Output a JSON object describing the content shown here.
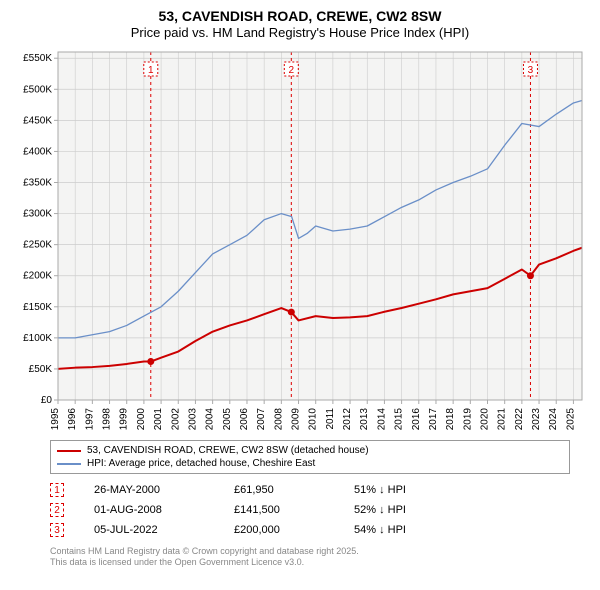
{
  "title": "53, CAVENDISH ROAD, CREWE, CW2 8SW",
  "subtitle": "Price paid vs. HM Land Registry's House Price Index (HPI)",
  "chart": {
    "type": "line",
    "background_color": "#f4f4f3",
    "grid_color": "#cccccc",
    "axis_color": "#aaaaaa",
    "tick_fontsize": 10,
    "tick_color": "#000000",
    "x_years": [
      1995,
      1996,
      1997,
      1998,
      1999,
      2000,
      2001,
      2002,
      2003,
      2004,
      2005,
      2006,
      2007,
      2008,
      2009,
      2010,
      2011,
      2012,
      2013,
      2014,
      2015,
      2016,
      2017,
      2018,
      2019,
      2020,
      2021,
      2022,
      2023,
      2024,
      2025
    ],
    "xlim": [
      1995,
      2025.5
    ],
    "y_ticks": [
      0,
      50,
      100,
      150,
      200,
      250,
      300,
      350,
      400,
      450,
      500,
      550
    ],
    "y_tick_labels": [
      "£0",
      "£50K",
      "£100K",
      "£150K",
      "£200K",
      "£250K",
      "£300K",
      "£350K",
      "£400K",
      "£450K",
      "£500K",
      "£550K"
    ],
    "ylim": [
      0,
      560
    ],
    "vertical_marker_color": "#dd0000",
    "marker_box_border": "#dd0000",
    "marker_box_text_color": "#dd0000",
    "series": [
      {
        "name": "property",
        "color": "#cc0000",
        "width": 2,
        "points": [
          [
            1995,
            50
          ],
          [
            1996,
            52
          ],
          [
            1997,
            53
          ],
          [
            1998,
            55
          ],
          [
            1999,
            58
          ],
          [
            2000,
            62
          ],
          [
            2000.4,
            61.95
          ],
          [
            2001,
            68
          ],
          [
            2002,
            78
          ],
          [
            2003,
            95
          ],
          [
            2004,
            110
          ],
          [
            2005,
            120
          ],
          [
            2006,
            128
          ],
          [
            2007,
            138
          ],
          [
            2008,
            148
          ],
          [
            2008.58,
            141.5
          ],
          [
            2009,
            128
          ],
          [
            2010,
            135
          ],
          [
            2011,
            132
          ],
          [
            2012,
            133
          ],
          [
            2013,
            135
          ],
          [
            2014,
            142
          ],
          [
            2015,
            148
          ],
          [
            2016,
            155
          ],
          [
            2017,
            162
          ],
          [
            2018,
            170
          ],
          [
            2019,
            175
          ],
          [
            2020,
            180
          ],
          [
            2021,
            195
          ],
          [
            2022,
            210
          ],
          [
            2022.5,
            200
          ],
          [
            2023,
            218
          ],
          [
            2024,
            228
          ],
          [
            2025,
            240
          ],
          [
            2025.5,
            245
          ]
        ]
      },
      {
        "name": "hpi",
        "color": "#6a8fc8",
        "width": 1.3,
        "points": [
          [
            1995,
            100
          ],
          [
            1996,
            100
          ],
          [
            1997,
            105
          ],
          [
            1998,
            110
          ],
          [
            1999,
            120
          ],
          [
            2000,
            135
          ],
          [
            2001,
            150
          ],
          [
            2002,
            175
          ],
          [
            2003,
            205
          ],
          [
            2004,
            235
          ],
          [
            2005,
            250
          ],
          [
            2006,
            265
          ],
          [
            2007,
            290
          ],
          [
            2008,
            300
          ],
          [
            2008.6,
            295
          ],
          [
            2009,
            260
          ],
          [
            2009.5,
            268
          ],
          [
            2010,
            280
          ],
          [
            2011,
            272
          ],
          [
            2012,
            275
          ],
          [
            2013,
            280
          ],
          [
            2014,
            295
          ],
          [
            2015,
            310
          ],
          [
            2016,
            322
          ],
          [
            2017,
            338
          ],
          [
            2018,
            350
          ],
          [
            2019,
            360
          ],
          [
            2020,
            372
          ],
          [
            2021,
            410
          ],
          [
            2022,
            445
          ],
          [
            2023,
            440
          ],
          [
            2024,
            460
          ],
          [
            2025,
            478
          ],
          [
            2025.5,
            482
          ]
        ]
      }
    ],
    "sale_markers": [
      {
        "num": "1",
        "year": 2000.4,
        "value": 61.95
      },
      {
        "num": "2",
        "year": 2008.58,
        "value": 141.5
      },
      {
        "num": "3",
        "year": 2022.5,
        "value": 200
      }
    ]
  },
  "legend": {
    "items": [
      {
        "label": "53, CAVENDISH ROAD, CREWE, CW2 8SW (detached house)",
        "color": "#cc0000"
      },
      {
        "label": "HPI: Average price, detached house, Cheshire East",
        "color": "#6a8fc8"
      }
    ]
  },
  "sales": [
    {
      "num": "1",
      "date": "26-MAY-2000",
      "price": "£61,950",
      "diff": "51% ↓ HPI"
    },
    {
      "num": "2",
      "date": "01-AUG-2008",
      "price": "£141,500",
      "diff": "52% ↓ HPI"
    },
    {
      "num": "3",
      "date": "05-JUL-2022",
      "price": "£200,000",
      "diff": "54% ↓ HPI"
    }
  ],
  "attribution": {
    "line1": "Contains HM Land Registry data © Crown copyright and database right 2025.",
    "line2": "This data is licensed under the Open Government Licence v3.0."
  }
}
